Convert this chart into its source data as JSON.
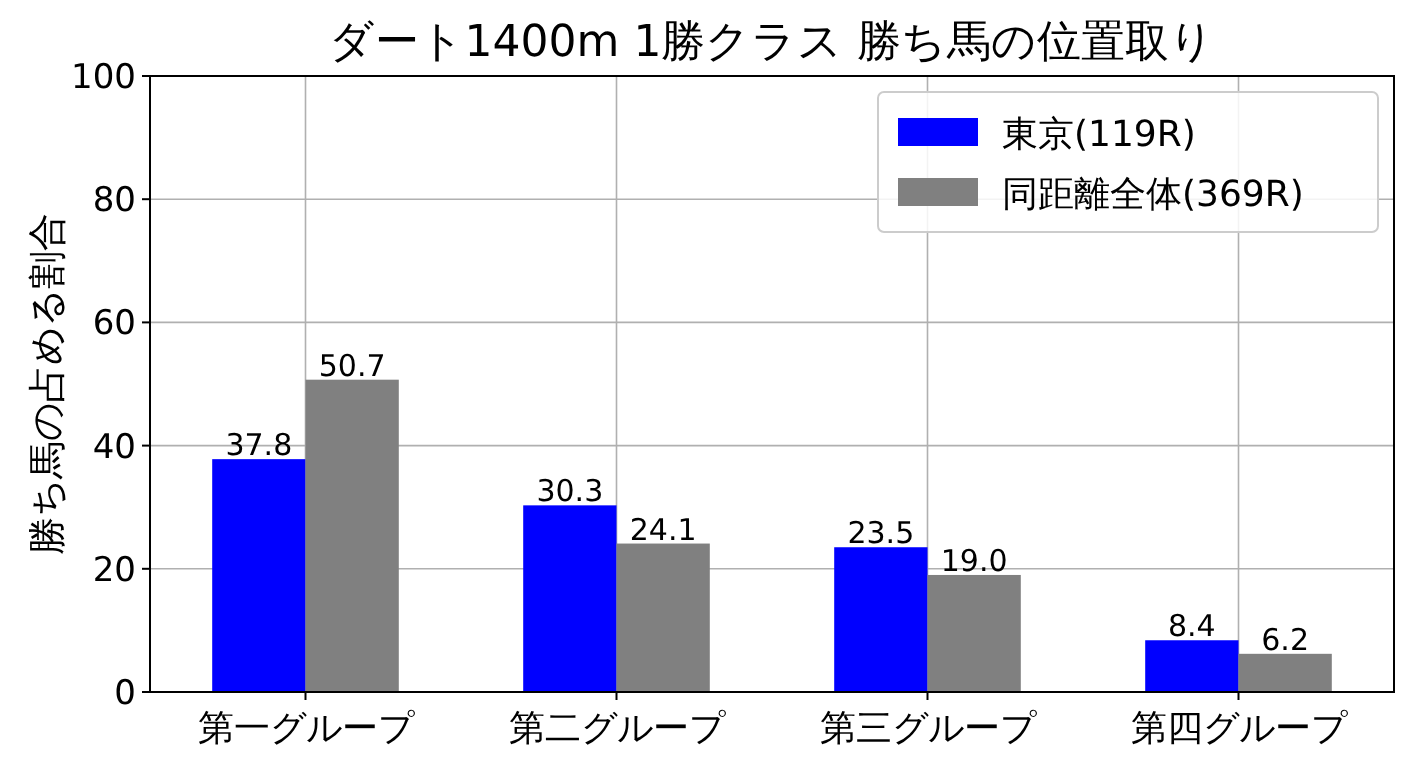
{
  "chart_data": {
    "type": "bar",
    "title": "ダート1400m 1勝クラス 勝ち馬の位置取り",
    "ylabel": "勝ち馬の占める割合",
    "categories": [
      "第一グループ",
      "第二グループ",
      "第三グループ",
      "第四グループ"
    ],
    "series": [
      {
        "name": "東京(119R)",
        "color": "#0000ff",
        "values": [
          37.8,
          30.3,
          23.5,
          8.4
        ],
        "value_labels": [
          "37.8",
          "30.3",
          "23.5",
          "8.4"
        ]
      },
      {
        "name": "同距離全体(369R)",
        "color": "#808080",
        "values": [
          50.7,
          24.1,
          19.0,
          6.2
        ],
        "value_labels": [
          "50.7",
          "24.1",
          "19.0",
          "6.2"
        ]
      }
    ],
    "ylim": [
      0,
      100
    ],
    "yticks": [
      0,
      20,
      40,
      60,
      80,
      100
    ],
    "grid": true,
    "legend": "top right"
  }
}
